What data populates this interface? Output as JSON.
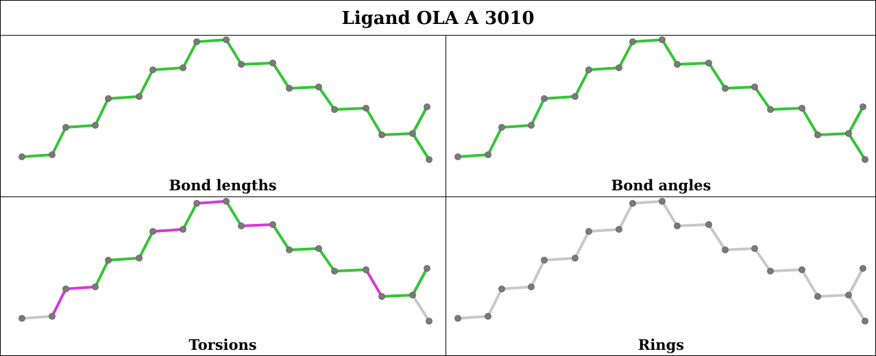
{
  "title": "Ligand OLA A 3010",
  "panels": [
    {
      "caption": "Bond lengths",
      "bond_colors": [
        "#35c435",
        "#35c435",
        "#35c435",
        "#35c435",
        "#35c435",
        "#35c435",
        "#35c435",
        "#35c435",
        "#35c435",
        "#35c435",
        "#35c435",
        "#35c435",
        "#35c435",
        "#35c435",
        "#35c435",
        "#35c435",
        "#35c435",
        "#35c435",
        "#35c435",
        "#35c435"
      ]
    },
    {
      "caption": "Bond angles",
      "bond_colors": [
        "#35c435",
        "#35c435",
        "#35c435",
        "#35c435",
        "#35c435",
        "#35c435",
        "#35c435",
        "#35c435",
        "#35c435",
        "#35c435",
        "#35c435",
        "#35c435",
        "#35c435",
        "#35c435",
        "#35c435",
        "#35c435",
        "#35c435",
        "#35c435",
        "#35c435",
        "#35c435"
      ]
    },
    {
      "caption": "Torsions",
      "bond_colors": [
        "#c8c8c8",
        "#d63ad6",
        "#d63ad6",
        "#35c435",
        "#35c435",
        "#35c435",
        "#d63ad6",
        "#35c435",
        "#d63ad6",
        "#35c435",
        "#d63ad6",
        "#35c435",
        "#35c435",
        "#35c435",
        "#35c435",
        "#d63ad6",
        "#35c435",
        "#d63ad6",
        "#35c435",
        "#c8c8c8"
      ]
    },
    {
      "caption": "Rings",
      "bond_colors": [
        "#c8c8c8",
        "#c8c8c8",
        "#c8c8c8",
        "#c8c8c8",
        "#c8c8c8",
        "#c8c8c8",
        "#c8c8c8",
        "#c8c8c8",
        "#c8c8c8",
        "#c8c8c8",
        "#c8c8c8",
        "#c8c8c8",
        "#c8c8c8",
        "#c8c8c8",
        "#c8c8c8",
        "#c8c8c8",
        "#c8c8c8",
        "#c8c8c8",
        "#c8c8c8",
        "#c8c8c8"
      ]
    }
  ],
  "atom_color": "#7a7a7a"
}
